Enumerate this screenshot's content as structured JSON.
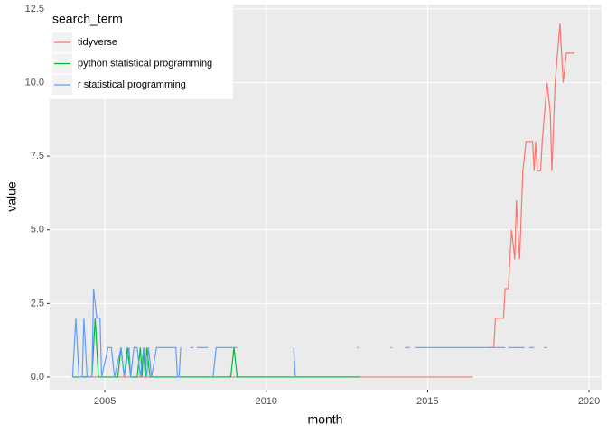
{
  "chart_data": {
    "type": "line",
    "x_label": "month",
    "y_label": "value",
    "legend_title": "search_term",
    "legend_position": "top-left",
    "grid": true,
    "xlim": [
      2003.29,
      2020.39
    ],
    "xticks": [
      2005,
      2010,
      2015,
      2020
    ],
    "ylim": [
      -0.43,
      12.65
    ],
    "yticks": [
      {
        "value": 0,
        "label": "0.0"
      },
      {
        "value": 2.5,
        "label": "2.5"
      },
      {
        "value": 5,
        "label": "5.0"
      },
      {
        "value": 7.5,
        "label": "7.5"
      },
      {
        "value": 10,
        "label": "10.0"
      },
      {
        "value": 12.5,
        "label": "12.5"
      }
    ],
    "series": [
      {
        "name": "tidyverse",
        "color": "#F8766D",
        "x": [
          2004.0,
          2016.4,
          2016.6,
          2016.9,
          2017.05,
          2017.1,
          2017.35,
          2017.4,
          2017.5,
          2017.6,
          2017.7,
          2017.75,
          2017.85,
          2017.95,
          2018.05,
          2018.25,
          2018.3,
          2018.35,
          2018.4,
          2018.5,
          2018.55,
          2018.7,
          2018.8,
          2018.85,
          2018.95,
          2019.1,
          2019.2,
          2019.3,
          2019.55
        ],
        "values": [
          0,
          0,
          null,
          1,
          1,
          2,
          2,
          3,
          3,
          5,
          4,
          6,
          4,
          7,
          8,
          8,
          7,
          8,
          7,
          7,
          8,
          10,
          9,
          7,
          10,
          12,
          10,
          11,
          11
        ]
      },
      {
        "name": "python statistical programming",
        "color": "#00BA38",
        "x": [
          2004.0,
          2004.6,
          2004.7,
          2004.8,
          2005.4,
          2005.5,
          2005.6,
          2005.7,
          2005.8,
          2006.0,
          2006.1,
          2006.15,
          2006.2,
          2006.25,
          2006.3,
          2006.4,
          2008.9,
          2009.0,
          2009.1,
          2012.9
        ],
        "values": [
          0,
          0,
          2,
          0,
          0,
          1,
          0,
          1,
          0,
          0,
          1,
          0,
          1,
          0,
          1,
          0,
          0,
          1,
          0,
          0
        ]
      },
      {
        "name": "r statistical programming",
        "color": "#619CFF",
        "x": [
          2004.0,
          2004.1,
          2004.2,
          2004.3,
          2004.35,
          2004.45,
          2004.6,
          2004.65,
          2004.75,
          2004.85,
          2004.9,
          2005.1,
          2005.2,
          2005.3,
          2005.5,
          2005.6,
          2005.75,
          2005.8,
          2005.9,
          2006.0,
          2006.1,
          2006.2,
          2006.3,
          2006.35,
          2006.45,
          2006.6,
          2007.2,
          2007.25,
          2007.3,
          2007.35,
          2007.45,
          2007.65,
          2007.75,
          2007.8,
          2007.85,
          2008.2,
          2008.3,
          2008.35,
          2008.45,
          2009.1,
          2009.2,
          2010.85,
          2010.9,
          2010.95,
          2012.8,
          2012.85,
          2013.0,
          2013.85,
          2013.9,
          2014.0,
          2014.3,
          2014.45,
          2014.5,
          2014.6,
          2017.4,
          2017.45,
          2017.5,
          2018.0,
          2018.05,
          2018.15,
          2018.3,
          2018.35,
          2018.6,
          2018.7
        ],
        "values": [
          0,
          2,
          0,
          0,
          2,
          0,
          0,
          3,
          2,
          2,
          0,
          1,
          1,
          0,
          1,
          0,
          1,
          0,
          1,
          1,
          0,
          1,
          0,
          1,
          0,
          1,
          1,
          0,
          0,
          1,
          null,
          1,
          1,
          null,
          1,
          1,
          null,
          0,
          1,
          1,
          null,
          1,
          0,
          null,
          1,
          1,
          null,
          1,
          1,
          null,
          1,
          1,
          null,
          1,
          1,
          null,
          1,
          1,
          null,
          1,
          1,
          null,
          1,
          1
        ]
      }
    ]
  }
}
